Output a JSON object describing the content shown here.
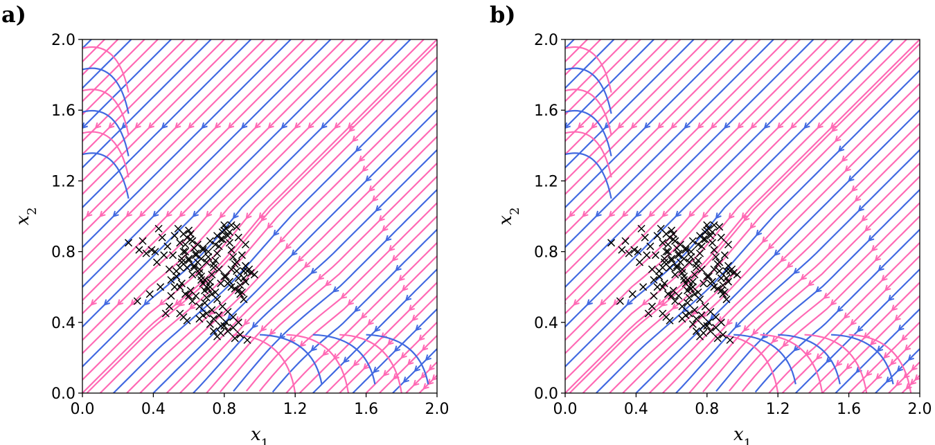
{
  "chart_data": [
    {
      "type": "scatter",
      "panel_label": "a)",
      "title": "",
      "xlabel": "x",
      "xlabel_sub": "1",
      "ylabel": "x",
      "ylabel_sub": "2",
      "xlim": [
        0.0,
        2.0
      ],
      "ylim": [
        0.0,
        2.0
      ],
      "xticks": [
        "0.0",
        "0.4",
        "0.8",
        "1.2",
        "1.6",
        "2.0"
      ],
      "yticks": [
        "0.0",
        "0.4",
        "0.8",
        "1.2",
        "1.6",
        "2.0"
      ],
      "grid": false,
      "legend": "none",
      "stream_colors": [
        "#ff69b4",
        "#4169e1"
      ],
      "marker_color": "#000000",
      "marker": "x",
      "series": [
        {
          "x": [
            0.26,
            0.32,
            0.34,
            0.36,
            0.39,
            0.41,
            0.43,
            0.45,
            0.31,
            0.38,
            0.44,
            0.47,
            0.49,
            0.5,
            0.52,
            0.53,
            0.55,
            0.56,
            0.57,
            0.58,
            0.59,
            0.6,
            0.61,
            0.62,
            0.63,
            0.64,
            0.65,
            0.66,
            0.67,
            0.68,
            0.69,
            0.7,
            0.71,
            0.72,
            0.73,
            0.74,
            0.75,
            0.76,
            0.77,
            0.78,
            0.79,
            0.8,
            0.81,
            0.82,
            0.83,
            0.84,
            0.85,
            0.86,
            0.87,
            0.88,
            0.89,
            0.9,
            0.91,
            0.92,
            0.93,
            0.95,
            0.97,
            0.52,
            0.55,
            0.58,
            0.6,
            0.63,
            0.66,
            0.69,
            0.72,
            0.75,
            0.78,
            0.81,
            0.84,
            0.87,
            0.9,
            0.54,
            0.57,
            0.61,
            0.65,
            0.68,
            0.71,
            0.74,
            0.77,
            0.8,
            0.83,
            0.86,
            0.89,
            0.48,
            0.51,
            0.56,
            0.59,
            0.62,
            0.67,
            0.7,
            0.73,
            0.76,
            0.79,
            0.82,
            0.85,
            0.88,
            0.91,
            0.94,
            0.5,
            0.53,
            0.57,
            0.6,
            0.64,
            0.68,
            0.72,
            0.76,
            0.8,
            0.84,
            0.88,
            0.92,
            0.55,
            0.58,
            0.62,
            0.66,
            0.7,
            0.74,
            0.78,
            0.82,
            0.86,
            0.42,
            0.46,
            0.49,
            0.53,
            0.56,
            0.61,
            0.64,
            0.69,
            0.73,
            0.77,
            0.81,
            0.85,
            0.89,
            0.93,
            0.6,
            0.63,
            0.67,
            0.71,
            0.75,
            0.79,
            0.83,
            0.87,
            0.91,
            0.55,
            0.57,
            0.59,
            0.66,
            0.68,
            0.72,
            0.74,
            0.76,
            0.78,
            0.8,
            0.82,
            0.62,
            0.7,
            0.84,
            0.88,
            0.92
          ],
          "y": [
            0.85,
            0.81,
            0.86,
            0.79,
            0.81,
            0.8,
            0.93,
            0.88,
            0.52,
            0.56,
            0.6,
            0.45,
            0.49,
            0.55,
            0.6,
            0.66,
            0.71,
            0.76,
            0.8,
            0.84,
            0.88,
            0.92,
            0.9,
            0.86,
            0.82,
            0.78,
            0.74,
            0.7,
            0.66,
            0.62,
            0.58,
            0.54,
            0.59,
            0.63,
            0.67,
            0.71,
            0.75,
            0.79,
            0.83,
            0.87,
            0.91,
            0.95,
            0.93,
            0.89,
            0.85,
            0.81,
            0.77,
            0.73,
            0.69,
            0.65,
            0.61,
            0.57,
            0.53,
            0.72,
            0.69,
            0.68,
            0.67,
            0.89,
            0.85,
            0.8,
            0.75,
            0.71,
            0.68,
            0.64,
            0.6,
            0.57,
            0.62,
            0.66,
            0.7,
            0.74,
            0.78,
            0.93,
            0.9,
            0.87,
            0.84,
            0.81,
            0.77,
            0.73,
            0.7,
            0.66,
            0.63,
            0.59,
            0.56,
            0.83,
            0.78,
            0.74,
            0.71,
            0.67,
            0.64,
            0.6,
            0.56,
            0.53,
            0.49,
            0.46,
            0.43,
            0.4,
            0.65,
            0.7,
            0.64,
            0.69,
            0.73,
            0.76,
            0.79,
            0.82,
            0.86,
            0.89,
            0.92,
            0.95,
            0.88,
            0.84,
            0.6,
            0.56,
            0.52,
            0.49,
            0.45,
            0.42,
            0.38,
            0.35,
            0.31,
            0.74,
            0.78,
            0.7,
            0.66,
            0.62,
            0.58,
            0.55,
            0.51,
            0.47,
            0.44,
            0.4,
            0.37,
            0.33,
            0.3,
            0.55,
            0.72,
            0.76,
            0.8,
            0.84,
            0.87,
            0.91,
            0.94,
            0.69,
            0.45,
            0.43,
            0.41,
            0.42,
            0.44,
            0.39,
            0.35,
            0.32,
            0.34,
            0.38,
            0.62,
            0.86,
            0.74,
            0.6,
            0.58,
            0.63
          ]
        }
      ]
    },
    {
      "type": "scatter",
      "panel_label": "b)",
      "title": "",
      "xlabel": "x",
      "xlabel_sub": "1",
      "ylabel": "x",
      "ylabel_sub": "2",
      "xlim": [
        0.0,
        2.0
      ],
      "ylim": [
        0.0,
        2.0
      ],
      "xticks": [
        "0.0",
        "0.4",
        "0.8",
        "1.2",
        "1.6",
        "2.0"
      ],
      "yticks": [
        "0.0",
        "0.4",
        "0.8",
        "1.2",
        "1.6",
        "2.0"
      ],
      "grid": false,
      "legend": "none",
      "stream_colors": [
        "#ff69b4",
        "#4169e1"
      ],
      "marker_color": "#000000",
      "marker": "x",
      "series": [
        {
          "x": [
            0.26,
            0.32,
            0.34,
            0.36,
            0.39,
            0.41,
            0.43,
            0.45,
            0.31,
            0.38,
            0.44,
            0.47,
            0.49,
            0.5,
            0.52,
            0.53,
            0.55,
            0.56,
            0.57,
            0.58,
            0.59,
            0.6,
            0.61,
            0.62,
            0.63,
            0.64,
            0.65,
            0.66,
            0.67,
            0.68,
            0.69,
            0.7,
            0.71,
            0.72,
            0.73,
            0.74,
            0.75,
            0.76,
            0.77,
            0.78,
            0.79,
            0.8,
            0.81,
            0.82,
            0.83,
            0.84,
            0.85,
            0.86,
            0.87,
            0.88,
            0.89,
            0.9,
            0.91,
            0.92,
            0.93,
            0.95,
            0.97,
            0.52,
            0.55,
            0.58,
            0.6,
            0.63,
            0.66,
            0.69,
            0.72,
            0.75,
            0.78,
            0.81,
            0.84,
            0.87,
            0.9,
            0.54,
            0.57,
            0.61,
            0.65,
            0.68,
            0.71,
            0.74,
            0.77,
            0.8,
            0.83,
            0.86,
            0.89,
            0.48,
            0.51,
            0.56,
            0.59,
            0.62,
            0.67,
            0.7,
            0.73,
            0.76,
            0.79,
            0.82,
            0.85,
            0.88,
            0.91,
            0.94,
            0.5,
            0.53,
            0.57,
            0.6,
            0.64,
            0.68,
            0.72,
            0.76,
            0.8,
            0.84,
            0.88,
            0.92,
            0.55,
            0.58,
            0.62,
            0.66,
            0.7,
            0.74,
            0.78,
            0.82,
            0.86,
            0.42,
            0.46,
            0.49,
            0.53,
            0.56,
            0.61,
            0.64,
            0.69,
            0.73,
            0.77,
            0.81,
            0.85,
            0.89,
            0.93,
            0.6,
            0.63,
            0.67,
            0.71,
            0.75,
            0.79,
            0.83,
            0.87,
            0.91,
            0.55,
            0.57,
            0.59,
            0.66,
            0.68,
            0.72,
            0.74,
            0.76,
            0.78,
            0.8,
            0.82,
            0.62,
            0.7,
            0.84,
            0.88,
            0.92
          ],
          "y": [
            0.85,
            0.81,
            0.86,
            0.79,
            0.81,
            0.8,
            0.93,
            0.88,
            0.52,
            0.56,
            0.6,
            0.45,
            0.49,
            0.55,
            0.6,
            0.66,
            0.71,
            0.76,
            0.8,
            0.84,
            0.88,
            0.92,
            0.9,
            0.86,
            0.82,
            0.78,
            0.74,
            0.7,
            0.66,
            0.62,
            0.58,
            0.54,
            0.59,
            0.63,
            0.67,
            0.71,
            0.75,
            0.79,
            0.83,
            0.87,
            0.91,
            0.95,
            0.93,
            0.89,
            0.85,
            0.81,
            0.77,
            0.73,
            0.69,
            0.65,
            0.61,
            0.57,
            0.53,
            0.72,
            0.69,
            0.68,
            0.67,
            0.89,
            0.85,
            0.8,
            0.75,
            0.71,
            0.68,
            0.64,
            0.6,
            0.57,
            0.62,
            0.66,
            0.7,
            0.74,
            0.78,
            0.93,
            0.9,
            0.87,
            0.84,
            0.81,
            0.77,
            0.73,
            0.7,
            0.66,
            0.63,
            0.59,
            0.56,
            0.83,
            0.78,
            0.74,
            0.71,
            0.67,
            0.64,
            0.6,
            0.56,
            0.53,
            0.49,
            0.46,
            0.43,
            0.4,
            0.65,
            0.7,
            0.64,
            0.69,
            0.73,
            0.76,
            0.79,
            0.82,
            0.86,
            0.89,
            0.92,
            0.95,
            0.88,
            0.84,
            0.6,
            0.56,
            0.52,
            0.49,
            0.45,
            0.42,
            0.38,
            0.35,
            0.31,
            0.74,
            0.78,
            0.7,
            0.66,
            0.62,
            0.58,
            0.55,
            0.51,
            0.47,
            0.44,
            0.4,
            0.37,
            0.33,
            0.3,
            0.55,
            0.72,
            0.76,
            0.8,
            0.84,
            0.87,
            0.91,
            0.94,
            0.69,
            0.45,
            0.43,
            0.41,
            0.42,
            0.44,
            0.39,
            0.35,
            0.32,
            0.34,
            0.38,
            0.62,
            0.86,
            0.74,
            0.6,
            0.58,
            0.63
          ]
        }
      ]
    }
  ]
}
